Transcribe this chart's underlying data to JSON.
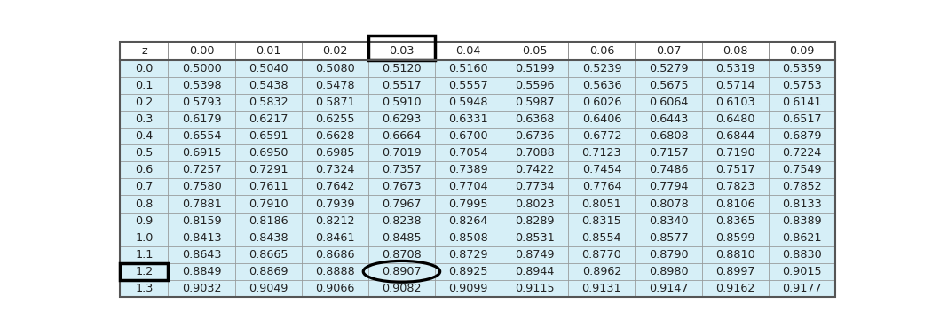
{
  "col_headers": [
    "z",
    "0.00",
    "0.01",
    "0.02",
    "0.03",
    "0.04",
    "0.05",
    "0.06",
    "0.07",
    "0.08",
    "0.09"
  ],
  "rows": [
    [
      "0.0",
      "0.5000",
      "0.5040",
      "0.5080",
      "0.5120",
      "0.5160",
      "0.5199",
      "0.5239",
      "0.5279",
      "0.5319",
      "0.5359"
    ],
    [
      "0.1",
      "0.5398",
      "0.5438",
      "0.5478",
      "0.5517",
      "0.5557",
      "0.5596",
      "0.5636",
      "0.5675",
      "0.5714",
      "0.5753"
    ],
    [
      "0.2",
      "0.5793",
      "0.5832",
      "0.5871",
      "0.5910",
      "0.5948",
      "0.5987",
      "0.6026",
      "0.6064",
      "0.6103",
      "0.6141"
    ],
    [
      "0.3",
      "0.6179",
      "0.6217",
      "0.6255",
      "0.6293",
      "0.6331",
      "0.6368",
      "0.6406",
      "0.6443",
      "0.6480",
      "0.6517"
    ],
    [
      "0.4",
      "0.6554",
      "0.6591",
      "0.6628",
      "0.6664",
      "0.6700",
      "0.6736",
      "0.6772",
      "0.6808",
      "0.6844",
      "0.6879"
    ],
    [
      "0.5",
      "0.6915",
      "0.6950",
      "0.6985",
      "0.7019",
      "0.7054",
      "0.7088",
      "0.7123",
      "0.7157",
      "0.7190",
      "0.7224"
    ],
    [
      "0.6",
      "0.7257",
      "0.7291",
      "0.7324",
      "0.7357",
      "0.7389",
      "0.7422",
      "0.7454",
      "0.7486",
      "0.7517",
      "0.7549"
    ],
    [
      "0.7",
      "0.7580",
      "0.7611",
      "0.7642",
      "0.7673",
      "0.7704",
      "0.7734",
      "0.7764",
      "0.7794",
      "0.7823",
      "0.7852"
    ],
    [
      "0.8",
      "0.7881",
      "0.7910",
      "0.7939",
      "0.7967",
      "0.7995",
      "0.8023",
      "0.8051",
      "0.8078",
      "0.8106",
      "0.8133"
    ],
    [
      "0.9",
      "0.8159",
      "0.8186",
      "0.8212",
      "0.8238",
      "0.8264",
      "0.8289",
      "0.8315",
      "0.8340",
      "0.8365",
      "0.8389"
    ],
    [
      "1.0",
      "0.8413",
      "0.8438",
      "0.8461",
      "0.8485",
      "0.8508",
      "0.8531",
      "0.8554",
      "0.8577",
      "0.8599",
      "0.8621"
    ],
    [
      "1.1",
      "0.8643",
      "0.8665",
      "0.8686",
      "0.8708",
      "0.8729",
      "0.8749",
      "0.8770",
      "0.8790",
      "0.8810",
      "0.8830"
    ],
    [
      "1.2",
      "0.8849",
      "0.8869",
      "0.8888",
      "0.8907",
      "0.8925",
      "0.8944",
      "0.8962",
      "0.8980",
      "0.8997",
      "0.9015"
    ],
    [
      "1.3",
      "0.9032",
      "0.9049",
      "0.9066",
      "0.9082",
      "0.9099",
      "0.9115",
      "0.9131",
      "0.9147",
      "0.9162",
      "0.9177"
    ]
  ],
  "highlight_row_idx": 12,
  "highlight_col_idx": 4,
  "header_bg": "#ffffff",
  "data_bg": "#d6eff7",
  "border_color": "#888888",
  "text_color": "#222222",
  "font_size": 9.2,
  "box_color": "#000000",
  "circle_color": "#000000"
}
